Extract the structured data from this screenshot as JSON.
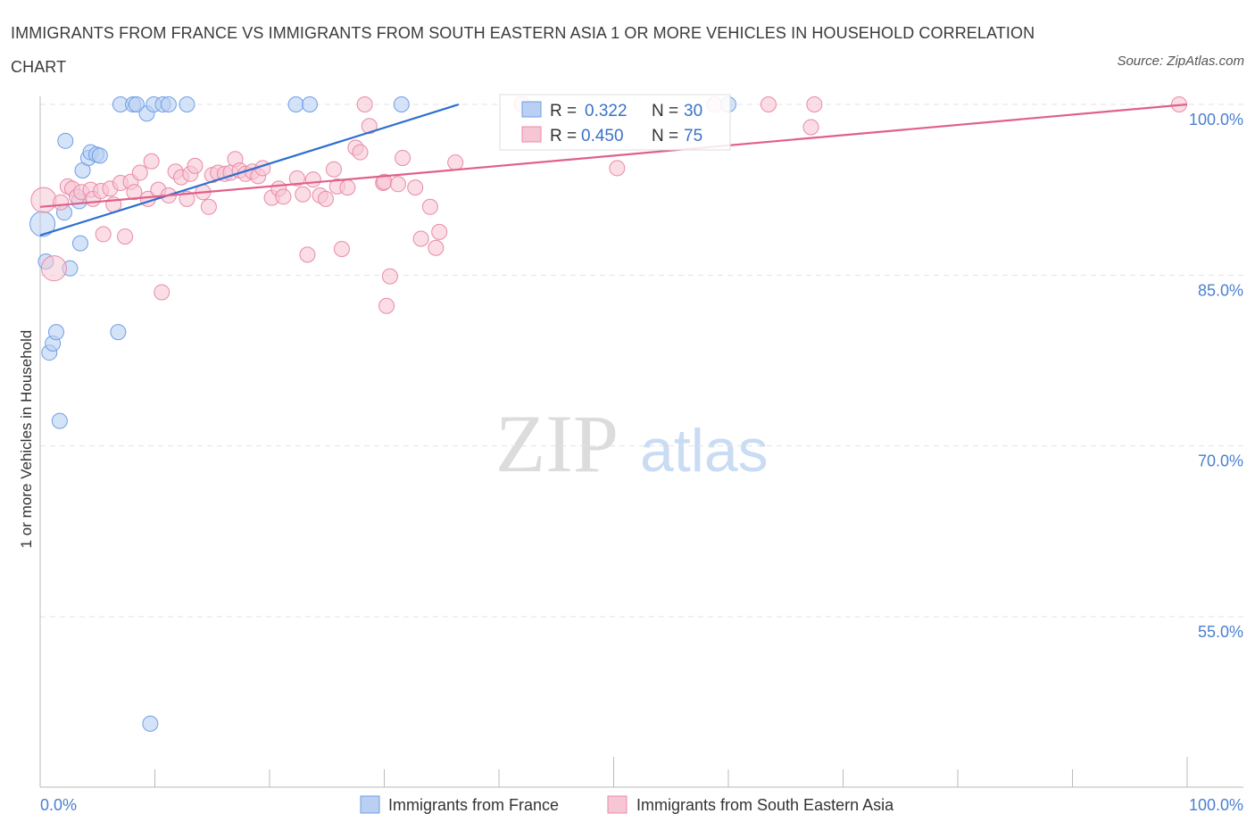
{
  "title": "IMMIGRANTS FROM FRANCE VS IMMIGRANTS FROM SOUTH EASTERN ASIA 1 OR MORE VEHICLES IN HOUSEHOLD CORRELATION CHART",
  "source": "Source: ZipAtlas.com",
  "watermark": {
    "zip": "ZIP",
    "atlas": "atlas"
  },
  "chart_data": {
    "type": "scatter",
    "title": "IMMIGRANTS FROM FRANCE VS IMMIGRANTS FROM SOUTH EASTERN ASIA 1 OR MORE VEHICLES IN HOUSEHOLD CORRELATION CHART",
    "xlabel": "",
    "ylabel": "1 or more Vehicles in Household",
    "xlim": [
      0,
      100
    ],
    "ylim": [
      40,
      101.5
    ],
    "x_tick_labels": [
      {
        "value": 0,
        "label": "0.0%"
      },
      {
        "value": 100,
        "label": "100.0%"
      }
    ],
    "y_tick_labels": [
      {
        "value": 100,
        "label": "100.0%"
      },
      {
        "value": 85,
        "label": "85.0%"
      },
      {
        "value": 70,
        "label": "70.0%"
      },
      {
        "value": 55,
        "label": "55.0%"
      }
    ],
    "legend_position": "top-center",
    "series": [
      {
        "name": "Immigrants from France",
        "color": "#6f9ee6",
        "fill": "#b9d0f3",
        "line_color": "#2f6fd0",
        "R": "0.322",
        "N": "30",
        "trend": {
          "x": [
            0,
            36.5
          ],
          "y": [
            88.5,
            100
          ]
        },
        "points": [
          {
            "x": 0.2,
            "y": 89.5,
            "big": true
          },
          {
            "x": 0.5,
            "y": 86.2
          },
          {
            "x": 0.8,
            "y": 78.2
          },
          {
            "x": 1.1,
            "y": 79.0
          },
          {
            "x": 1.4,
            "y": 80.0
          },
          {
            "x": 1.7,
            "y": 72.2
          },
          {
            "x": 2.1,
            "y": 90.5
          },
          {
            "x": 2.2,
            "y": 96.8
          },
          {
            "x": 2.6,
            "y": 85.6
          },
          {
            "x": 3.4,
            "y": 91.5
          },
          {
            "x": 3.5,
            "y": 87.8
          },
          {
            "x": 3.7,
            "y": 94.2
          },
          {
            "x": 4.2,
            "y": 95.3
          },
          {
            "x": 4.4,
            "y": 95.8
          },
          {
            "x": 4.9,
            "y": 95.6
          },
          {
            "x": 5.2,
            "y": 95.5
          },
          {
            "x": 6.8,
            "y": 80.0
          },
          {
            "x": 7.0,
            "y": 100.0
          },
          {
            "x": 8.1,
            "y": 100.0
          },
          {
            "x": 8.4,
            "y": 100.0
          },
          {
            "x": 9.3,
            "y": 99.2
          },
          {
            "x": 9.6,
            "y": 45.6
          },
          {
            "x": 9.9,
            "y": 100.0
          },
          {
            "x": 10.7,
            "y": 100.0
          },
          {
            "x": 11.2,
            "y": 100.0
          },
          {
            "x": 12.8,
            "y": 100.0
          },
          {
            "x": 22.3,
            "y": 100.0
          },
          {
            "x": 23.5,
            "y": 100.0
          },
          {
            "x": 31.5,
            "y": 100.0
          },
          {
            "x": 60.0,
            "y": 100.0
          }
        ]
      },
      {
        "name": "Immigrants from South Eastern Asia",
        "color": "#e98aa8",
        "fill": "#f6c6d4",
        "line_color": "#e0608a",
        "R": "0.450",
        "N": "75",
        "trend": {
          "x": [
            0,
            100
          ],
          "y": [
            91.0,
            100.0
          ]
        },
        "points": [
          {
            "x": 0.3,
            "y": 91.6,
            "big": true
          },
          {
            "x": 1.2,
            "y": 85.6,
            "big": true
          },
          {
            "x": 1.8,
            "y": 91.4
          },
          {
            "x": 2.4,
            "y": 92.8
          },
          {
            "x": 2.8,
            "y": 92.6
          },
          {
            "x": 3.2,
            "y": 91.9
          },
          {
            "x": 3.6,
            "y": 92.3
          },
          {
            "x": 4.4,
            "y": 92.5
          },
          {
            "x": 4.6,
            "y": 91.7
          },
          {
            "x": 5.3,
            "y": 92.4
          },
          {
            "x": 5.5,
            "y": 88.6
          },
          {
            "x": 6.1,
            "y": 92.6
          },
          {
            "x": 6.4,
            "y": 91.2
          },
          {
            "x": 7.0,
            "y": 93.1
          },
          {
            "x": 7.4,
            "y": 88.4
          },
          {
            "x": 7.9,
            "y": 93.2
          },
          {
            "x": 8.2,
            "y": 92.3
          },
          {
            "x": 8.7,
            "y": 94.0
          },
          {
            "x": 9.4,
            "y": 91.7
          },
          {
            "x": 9.7,
            "y": 95.0
          },
          {
            "x": 10.3,
            "y": 92.5
          },
          {
            "x": 10.6,
            "y": 83.5
          },
          {
            "x": 11.2,
            "y": 92.0
          },
          {
            "x": 11.8,
            "y": 94.1
          },
          {
            "x": 12.3,
            "y": 93.6
          },
          {
            "x": 12.8,
            "y": 91.7
          },
          {
            "x": 13.1,
            "y": 93.9
          },
          {
            "x": 13.5,
            "y": 94.6
          },
          {
            "x": 14.2,
            "y": 92.3
          },
          {
            "x": 14.7,
            "y": 91.0
          },
          {
            "x": 15.0,
            "y": 93.8
          },
          {
            "x": 15.5,
            "y": 94.0
          },
          {
            "x": 16.1,
            "y": 93.9
          },
          {
            "x": 16.6,
            "y": 94.0
          },
          {
            "x": 17.0,
            "y": 95.2
          },
          {
            "x": 17.4,
            "y": 94.2
          },
          {
            "x": 17.9,
            "y": 93.9
          },
          {
            "x": 18.5,
            "y": 94.1
          },
          {
            "x": 19.0,
            "y": 93.7
          },
          {
            "x": 19.4,
            "y": 94.4
          },
          {
            "x": 20.2,
            "y": 91.8
          },
          {
            "x": 20.8,
            "y": 92.6
          },
          {
            "x": 21.2,
            "y": 91.9
          },
          {
            "x": 22.4,
            "y": 93.5
          },
          {
            "x": 22.9,
            "y": 92.1
          },
          {
            "x": 23.3,
            "y": 86.8
          },
          {
            "x": 23.8,
            "y": 93.4
          },
          {
            "x": 24.4,
            "y": 92.0
          },
          {
            "x": 24.9,
            "y": 91.7
          },
          {
            "x": 25.6,
            "y": 94.3
          },
          {
            "x": 25.9,
            "y": 92.8
          },
          {
            "x": 26.3,
            "y": 87.3
          },
          {
            "x": 26.8,
            "y": 92.7
          },
          {
            "x": 27.5,
            "y": 96.2
          },
          {
            "x": 27.9,
            "y": 95.8
          },
          {
            "x": 28.3,
            "y": 100.0
          },
          {
            "x": 28.7,
            "y": 98.1
          },
          {
            "x": 29.9,
            "y": 93.1
          },
          {
            "x": 30.0,
            "y": 93.2
          },
          {
            "x": 30.5,
            "y": 84.9
          },
          {
            "x": 30.2,
            "y": 82.3
          },
          {
            "x": 31.2,
            "y": 93.0
          },
          {
            "x": 31.6,
            "y": 95.3
          },
          {
            "x": 32.7,
            "y": 92.7
          },
          {
            "x": 33.2,
            "y": 88.2
          },
          {
            "x": 34.0,
            "y": 91.0
          },
          {
            "x": 34.5,
            "y": 87.4
          },
          {
            "x": 34.8,
            "y": 88.8
          },
          {
            "x": 36.2,
            "y": 94.9
          },
          {
            "x": 42.0,
            "y": 100.0
          },
          {
            "x": 50.3,
            "y": 94.4
          },
          {
            "x": 58.8,
            "y": 100.0
          },
          {
            "x": 63.5,
            "y": 100.0
          },
          {
            "x": 67.5,
            "y": 100.0
          },
          {
            "x": 67.2,
            "y": 98.0
          },
          {
            "x": 99.3,
            "y": 100.0
          }
        ]
      }
    ]
  }
}
